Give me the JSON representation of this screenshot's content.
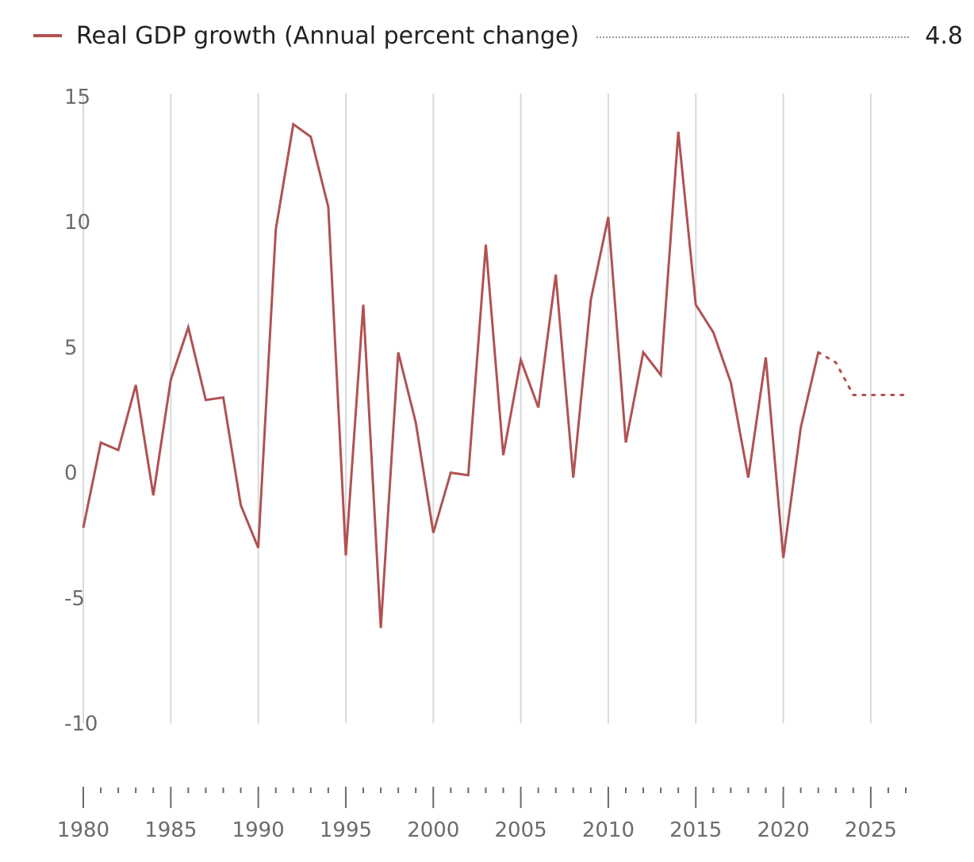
{
  "legend": {
    "series_name": "Real GDP growth (Annual percent change)",
    "latest_value": "4.8",
    "color": "#b05252"
  },
  "chart_data": {
    "type": "line",
    "xlabel": "",
    "ylabel": "",
    "xlim": [
      1980,
      2027
    ],
    "ylim": [
      -10,
      15
    ],
    "y_ticks": [
      "15",
      "10",
      "5",
      "0",
      "-5",
      "-10"
    ],
    "x_ticks": [
      "1980",
      "1985",
      "1990",
      "1995",
      "2000",
      "2005",
      "2010",
      "2015",
      "2020",
      "2025"
    ],
    "grid": "vertical",
    "legend_position": "top-left",
    "series": [
      {
        "name": "Real GDP growth (Annual percent change)",
        "style": "solid",
        "x": [
          1980,
          1981,
          1982,
          1983,
          1984,
          1985,
          1986,
          1987,
          1988,
          1989,
          1990,
          1991,
          1992,
          1993,
          1994,
          1995,
          1996,
          1997,
          1998,
          1999,
          2000,
          2001,
          2002,
          2003,
          2004,
          2005,
          2006,
          2007,
          2008,
          2009,
          2010,
          2011,
          2012,
          2013,
          2014,
          2015,
          2016,
          2017,
          2018,
          2019,
          2020,
          2021,
          2022
        ],
        "values": [
          -2.2,
          1.2,
          0.9,
          3.5,
          -0.9,
          3.7,
          5.8,
          2.9,
          3.0,
          -1.3,
          -3.0,
          9.7,
          13.9,
          13.4,
          10.6,
          -3.3,
          6.7,
          -6.2,
          4.8,
          2.0,
          -2.4,
          0.0,
          -0.1,
          9.1,
          0.7,
          4.5,
          2.6,
          7.9,
          -0.2,
          6.9,
          10.2,
          1.2,
          4.8,
          3.9,
          13.6,
          6.7,
          5.6,
          3.6,
          -0.2,
          4.6,
          -3.4,
          1.8,
          4.8
        ]
      },
      {
        "name": "",
        "style": "dotted",
        "x": [
          2022,
          2023,
          2024,
          2025,
          2026,
          2027
        ],
        "values": [
          4.8,
          4.4,
          3.1,
          3.1,
          3.1,
          3.1
        ]
      }
    ]
  }
}
